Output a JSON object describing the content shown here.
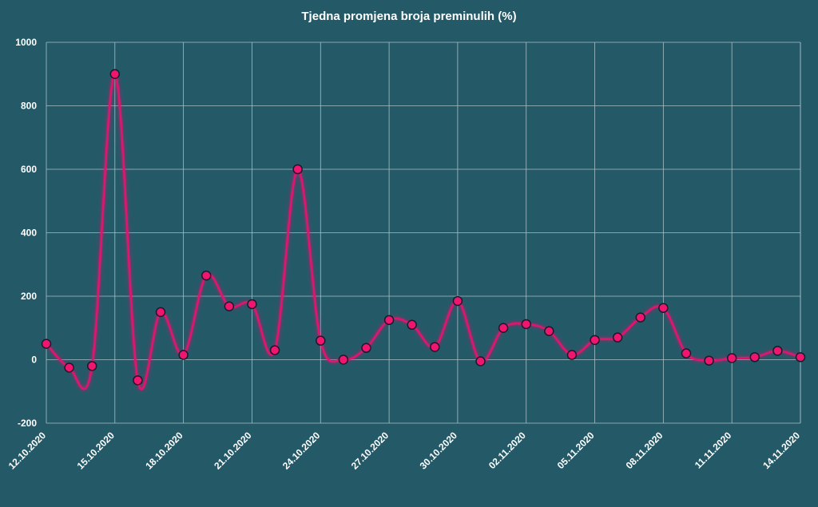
{
  "chart_data": {
    "type": "line",
    "title": "Tjedna promjena broja preminulih (%)",
    "xlabel": "",
    "ylabel": "",
    "ylim": [
      -200,
      1000
    ],
    "yticks": [
      -200,
      0,
      200,
      400,
      600,
      800,
      1000
    ],
    "xtick_labels": [
      "12.10.2020",
      "15.10.2020",
      "18.10.2020",
      "21.10.2020",
      "24.10.2020",
      "27.10.2020",
      "30.10.2020",
      "02.11.2020",
      "05.11.2020",
      "08.11.2020",
      "11.11.2020",
      "14.11.2020"
    ],
    "grid": true,
    "legend": "none",
    "series": [
      {
        "x": [
          "12.10.2020",
          "13.10.2020",
          "14.10.2020",
          "15.10.2020",
          "16.10.2020",
          "17.10.2020",
          "18.10.2020",
          "19.10.2020",
          "20.10.2020",
          "21.10.2020",
          "22.10.2020",
          "23.10.2020",
          "24.10.2020",
          "25.10.2020",
          "26.10.2020",
          "27.10.2020",
          "28.10.2020",
          "29.10.2020",
          "30.10.2020",
          "31.10.2020",
          "01.11.2020",
          "02.11.2020",
          "03.11.2020",
          "04.11.2020",
          "05.11.2020",
          "06.11.2020",
          "07.11.2020",
          "08.11.2020",
          "09.11.2020",
          "10.11.2020",
          "11.11.2020",
          "12.11.2020",
          "13.11.2020",
          "14.11.2020"
        ],
        "values": [
          50,
          -25,
          -20,
          900,
          -65,
          150,
          15,
          265,
          168,
          175,
          30,
          600,
          60,
          0,
          37,
          125,
          110,
          40,
          185,
          -5,
          100,
          112,
          90,
          15,
          62,
          70,
          133,
          163,
          20,
          -3,
          5,
          8,
          28,
          8
        ]
      }
    ],
    "colors": {
      "background": "#245a68",
      "line": "#e0126e",
      "marker_fill": "#f0166f",
      "marker_stroke": "#1a1a2a",
      "grid": "#a8bec5",
      "text": "#ffffff"
    }
  }
}
